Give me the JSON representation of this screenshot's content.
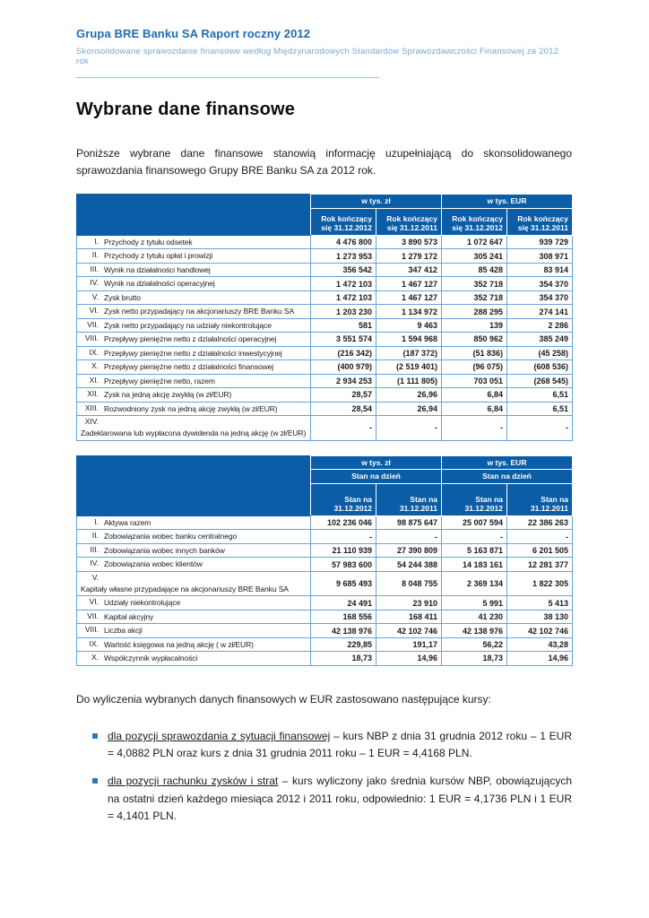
{
  "header": {
    "title": "Grupa BRE Banku SA Raport roczny 2012",
    "subtitle": "Skonsolidowane sprawozdanie finansowe według Międzynarodowych Standardów Sprawozdawczości Finansowej za 2012 rok"
  },
  "page_title": "Wybrane dane finansowe",
  "intro": "Poniższe wybrane dane finansowe stanowią informację uzupełniającą do skonsolidowanego sprawozdania finansowego Grupy BRE Banku SA za 2012 rok.",
  "table1": {
    "group_headers": [
      "w tys. zł",
      "w tys. EUR"
    ],
    "col_headers": [
      "Rok kończący się 31.12.2012",
      "Rok kończący się 31.12.2011",
      "Rok kończący się 31.12.2012",
      "Rok kończący się 31.12.2011"
    ],
    "rows": [
      {
        "num": "I.",
        "label": "Przychody z tytułu odsetek",
        "values": [
          "4 476 800",
          "3 890 573",
          "1 072 647",
          "939 729"
        ]
      },
      {
        "num": "II.",
        "label": "Przychody z tytułu opłat i prowizji",
        "values": [
          "1 273 953",
          "1 279 172",
          "305 241",
          "308 971"
        ]
      },
      {
        "num": "III.",
        "label": "Wynik na działalności handlowej",
        "values": [
          "356 542",
          "347 412",
          "85 428",
          "83 914"
        ]
      },
      {
        "num": "IV.",
        "label": "Wynik na działalności operacyjnej",
        "values": [
          "1 472 103",
          "1 467 127",
          "352 718",
          "354 370"
        ]
      },
      {
        "num": "V.",
        "label": "Zysk brutto",
        "values": [
          "1 472 103",
          "1 467 127",
          "352 718",
          "354 370"
        ]
      },
      {
        "num": "VI.",
        "label": "Zysk netto przypadający na akcjonariuszy BRE Banku SA",
        "values": [
          "1 203 230",
          "1 134 972",
          "288 295",
          "274 141"
        ]
      },
      {
        "num": "VII.",
        "label": "Zysk netto przypadający na udziały niekontrolujące",
        "values": [
          "581",
          "9 463",
          "139",
          "2 286"
        ]
      },
      {
        "num": "VIII.",
        "label": "Przepływy pieniężne netto z działalności operacyjnej",
        "values": [
          "3 551 574",
          "1 594 968",
          "850 962",
          "385 249"
        ]
      },
      {
        "num": "IX.",
        "label": "Przepływy pieniężne netto z działalności inwestycyjnej",
        "values": [
          "(216 342)",
          "(187 372)",
          "(51 836)",
          "(45 258)"
        ]
      },
      {
        "num": "X.",
        "label": "Przepływy pieniężne netto z działalności finansowej",
        "values": [
          "(400 979)",
          "(2 519 401)",
          "(96 075)",
          "(608 536)"
        ]
      },
      {
        "num": "XI.",
        "label": "Przepływy pieniężne netto, razem",
        "values": [
          "2 934 253",
          "(1 111 805)",
          "703 051",
          "(268 545)"
        ]
      },
      {
        "num": "XII.",
        "label": "Zysk na jedną akcję zwykłą (w zł/EUR)",
        "values": [
          "28,57",
          "26,96",
          "6,84",
          "6,51"
        ]
      },
      {
        "num": "XIII.",
        "label": "Rozwodniony zysk na jedną akcję zwykłą (w zł/EUR)",
        "values": [
          "28,54",
          "26,94",
          "6,84",
          "6,51"
        ]
      },
      {
        "num": "XIV.",
        "label": "Zadeklarowana lub wypłacona dywidenda na jedną akcję  (w zł/EUR)",
        "values": [
          "-",
          "-",
          "-",
          "-"
        ]
      }
    ]
  },
  "table2": {
    "group_headers": [
      "w tys. zł",
      "w tys. EUR"
    ],
    "sub_headers": [
      "Stan na dzień",
      "Stan na dzień"
    ],
    "col_headers": [
      "Stan na 31.12.2012",
      "Stan na 31.12.2011",
      "Stan na 31.12.2012",
      "Stan na 31.12.2011"
    ],
    "rows": [
      {
        "num": "I.",
        "label": "Aktywa razem",
        "values": [
          "102 236 046",
          "98 875 647",
          "25 007 594",
          "22 386 263"
        ]
      },
      {
        "num": "II.",
        "label": "Zobowiązania wobec banku centralnego",
        "values": [
          "-",
          "-",
          "-",
          "-"
        ]
      },
      {
        "num": "III.",
        "label": "Zobowiązania wobec innych banków",
        "values": [
          "21 110 939",
          "27 390 809",
          "5 163 871",
          "6 201 505"
        ]
      },
      {
        "num": "IV.",
        "label": "Zobowiązania wobec klientów",
        "values": [
          "57 983 600",
          "54 244 388",
          "14 183 161",
          "12 281 377"
        ]
      },
      {
        "num": "V.",
        "label": "Kapitały własne przypadające na akcjonariuszy BRE Banku SA",
        "values": [
          "9 685 493",
          "8 048 755",
          "2 369 134",
          "1 822 305"
        ]
      },
      {
        "num": "VI.",
        "label": "Udziały niekontrolujące",
        "values": [
          "24 491",
          "23 910",
          "5 991",
          "5 413"
        ]
      },
      {
        "num": "VII.",
        "label": "Kapitał akcyjny",
        "values": [
          "168 556",
          "168 411",
          "41 230",
          "38 130"
        ]
      },
      {
        "num": "VIII.",
        "label": "Liczba akcji",
        "values": [
          "42 138 976",
          "42 102 746",
          "42 138 976",
          "42 102 746"
        ]
      },
      {
        "num": "IX.",
        "label": "Wartość księgowa na jedną akcję ( w zł/EUR)",
        "values": [
          "229,85",
          "191,17",
          "56,22",
          "43,28"
        ]
      },
      {
        "num": "X.",
        "label": "Współczynnik wypłacalności",
        "values": [
          "18,73",
          "14,96",
          "18,73",
          "14,96"
        ]
      }
    ]
  },
  "rates_intro": "Do wyliczenia wybranych danych finansowych w EUR zastosowano następujące kursy:",
  "bullets": [
    {
      "underline": "dla pozycji sprawozdania z sytuacji finansowej",
      "rest": " – kurs NBP z dnia 31 grudnia 2012 roku – 1 EUR = 4,0882 PLN oraz kurs z dnia 31 grudnia 2011 roku – 1 EUR = 4,4168 PLN."
    },
    {
      "underline": "dla pozycji rachunku zysków i strat",
      "rest": " – kurs wyliczony jako średnia kursów NBP, obowiązujących na ostatni dzień każdego miesiąca 2012 i 2011 roku, odpowiednio: 1 EUR = 4,1736 PLN i 1 EUR = 4,1401 PLN."
    }
  ],
  "colors": {
    "header_blue": "#1e6cb5",
    "subtitle_blue": "#76a7d4",
    "table_header_blue": "#0a5da6",
    "table_grid_blue": "#6aa2d4",
    "bullet_blue": "#2f78ba"
  }
}
